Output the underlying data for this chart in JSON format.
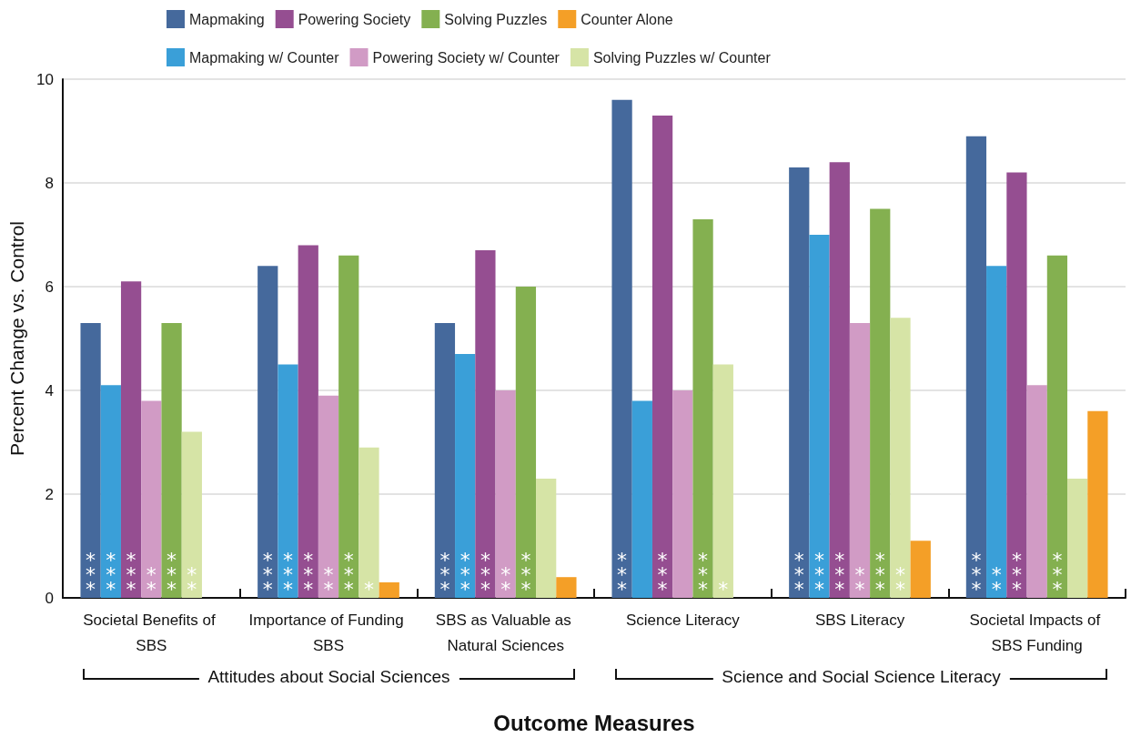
{
  "chart_data": {
    "type": "bar",
    "xlabel": "Outcome Measures",
    "ylabel": "Percent Change vs. Control",
    "categories": [
      "Societal Benefits of SBS",
      "Importance of Funding SBS",
      "SBS as Valuable as Natural Sciences",
      "Science Literacy",
      "SBS Literacy",
      "Societal Impacts of SBS Funding"
    ],
    "series": [
      {
        "name": "Mapmaking",
        "color": "#45699c",
        "values": [
          5.3,
          6.4,
          5.3,
          9.6,
          8.3,
          8.9
        ],
        "value_labels": [
          "***",
          "***",
          "***",
          "***",
          "***",
          "***"
        ]
      },
      {
        "name": "Mapmaking w/ Counter",
        "color": "#3a9fd8",
        "values": [
          4.1,
          4.5,
          4.7,
          3.8,
          7.0,
          6.4
        ],
        "value_labels": [
          "***",
          "***",
          "***",
          null,
          "***",
          "**"
        ]
      },
      {
        "name": "Powering Society",
        "color": "#954e91",
        "values": [
          6.1,
          6.8,
          6.7,
          9.3,
          8.4,
          8.2
        ],
        "value_labels": [
          "***",
          "***",
          "***",
          "***",
          "***",
          "***"
        ]
      },
      {
        "name": "Powering Society w/ Counter",
        "color": "#d19bc5",
        "values": [
          3.8,
          3.9,
          4.0,
          4.0,
          5.3,
          4.1
        ],
        "value_labels": [
          "**",
          "**",
          "**",
          null,
          "**",
          null
        ]
      },
      {
        "name": "Solving Puzzles",
        "color": "#84b050",
        "values": [
          5.3,
          6.6,
          6.0,
          7.3,
          7.5,
          6.6
        ],
        "value_labels": [
          "***",
          "***",
          "***",
          "***",
          "***",
          "***"
        ]
      },
      {
        "name": "Solving Puzzles w/ Counter",
        "color": "#d6e4a6",
        "values": [
          3.2,
          2.9,
          2.3,
          4.5,
          5.4,
          2.3
        ],
        "value_labels": [
          "**",
          "*",
          null,
          "*",
          "**",
          null
        ]
      },
      {
        "name": "Counter Alone",
        "color": "#f49f27",
        "values": [
          null,
          0.3,
          0.4,
          null,
          1.1,
          3.6
        ]
      }
    ],
    "annotations": [
      "Attitudes about Social Sciences",
      "Science and Social Science Literacy"
    ],
    "ylim": [
      0,
      10
    ],
    "yticks": [
      0,
      2,
      4,
      6,
      8,
      10
    ],
    "grid": "y",
    "legend": "top"
  }
}
